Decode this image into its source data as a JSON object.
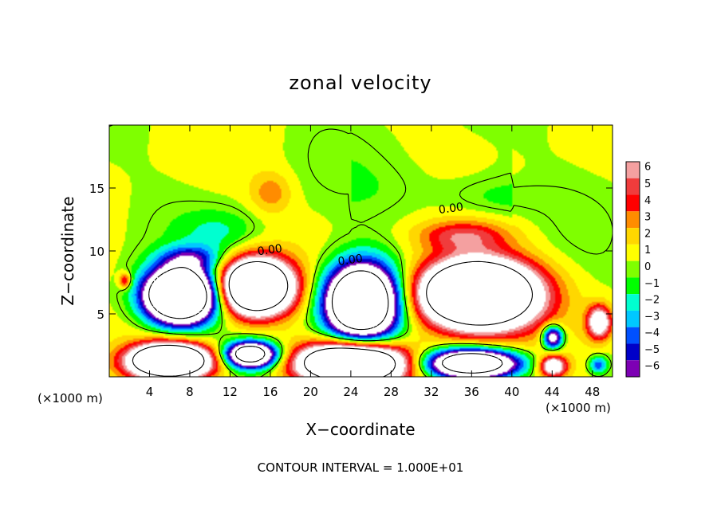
{
  "chart_data": {
    "type": "heatmap",
    "title": "zonal velocity",
    "xlabel": "X−coordinate",
    "ylabel": "Z−coordinate",
    "x_unit_left": "(×1000 m)",
    "x_unit_right": "(×1000 m)",
    "xlim": [
      0,
      50
    ],
    "ylim": [
      0,
      20
    ],
    "xticks": [
      4,
      8,
      12,
      16,
      20,
      24,
      28,
      32,
      36,
      40,
      44,
      48
    ],
    "xtick_labels": [
      "4",
      "8",
      "12",
      "16",
      "20",
      "24",
      "28",
      "32",
      "36",
      "40",
      "44",
      "48"
    ],
    "yticks": [
      5,
      10,
      15
    ],
    "ytick_labels": [
      "5",
      "10",
      "15"
    ],
    "colorbar": {
      "levels": [
        6,
        5,
        4,
        3,
        2,
        1,
        0,
        -1,
        -2,
        -3,
        -4,
        -5,
        -6
      ],
      "labels": [
        "6",
        "5",
        "4",
        "3",
        "2",
        "1",
        "0",
        "−1",
        "−2",
        "−3",
        "−4",
        "−5",
        "−6"
      ],
      "colors": [
        "#f4a0a0",
        "#f03c3c",
        "#ff0000",
        "#ff8c00",
        "#ffd700",
        "#ffff00",
        "#7fff00",
        "#00ff00",
        "#00ffd0",
        "#00c8ff",
        "#0050ff",
        "#0000c8",
        "#7d00b4"
      ]
    },
    "contour_labels": [
      {
        "text": "0.00",
        "x": 16,
        "y": 9.8
      },
      {
        "text": "0.00",
        "x": 24,
        "y": 9.0
      },
      {
        "text": "0.00",
        "x": 34,
        "y": 13.1
      }
    ],
    "features": [
      {
        "x": 7,
        "z": 6.5,
        "rx": 3.4,
        "rz": 2.1,
        "v": -24
      },
      {
        "x": 14.5,
        "z": 7.2,
        "rx": 3.4,
        "rz": 2.1,
        "v": 22
      },
      {
        "x": 25,
        "z": 6.0,
        "rx": 3.5,
        "rz": 2.9,
        "v": -22
      },
      {
        "x": 36.5,
        "z": 6.6,
        "rx": 5.6,
        "rz": 2.6,
        "v": 24
      },
      {
        "x": 6,
        "z": 1.3,
        "rx": 3.8,
        "rz": 1.3,
        "v": 22
      },
      {
        "x": 14,
        "z": 1.8,
        "rx": 2.5,
        "rz": 1.0,
        "v": -16
      },
      {
        "x": 24,
        "z": 1.1,
        "rx": 5.2,
        "rz": 1.6,
        "v": 22
      },
      {
        "x": 36,
        "z": 1.1,
        "rx": 4.4,
        "rz": 1.1,
        "v": -18
      },
      {
        "x": 44,
        "z": 3.2,
        "rx": 1.0,
        "rz": 0.9,
        "v": -10
      },
      {
        "x": 44,
        "z": 0.9,
        "rx": 1.3,
        "rz": 0.8,
        "v": 9
      },
      {
        "x": 48.6,
        "z": 4.4,
        "rx": 1.2,
        "rz": 1.3,
        "v": 9
      },
      {
        "x": 35,
        "z": 11.3,
        "rx": 4.5,
        "rz": 1.2,
        "v": 4
      },
      {
        "x": 16,
        "z": 14.7,
        "rx": 2.0,
        "rz": 1.6,
        "v": 2.5
      },
      {
        "x": 11,
        "z": 11.6,
        "rx": 4.0,
        "rz": 1.8,
        "v": -2
      },
      {
        "x": 38,
        "z": 14.3,
        "rx": 5.0,
        "rz": 1.5,
        "v": -1.2
      },
      {
        "x": 8,
        "z": 9.5,
        "rx": 3.0,
        "rz": 1.0,
        "v": -4
      },
      {
        "x": 1.5,
        "z": 7.7,
        "rx": 0.6,
        "rz": 0.6,
        "v": 5
      },
      {
        "x": 48.5,
        "z": 1.0,
        "rx": 0.9,
        "rz": 0.7,
        "v": -5
      }
    ],
    "footer": "CONTOUR INTERVAL = 1.000E+01"
  }
}
